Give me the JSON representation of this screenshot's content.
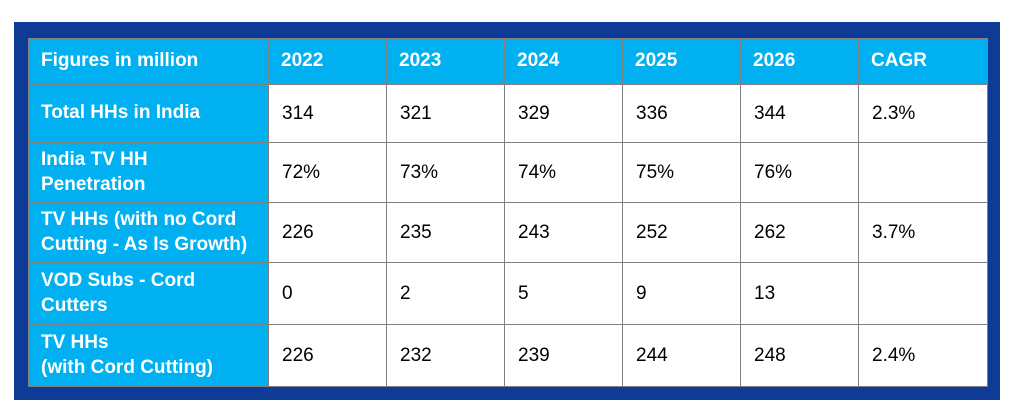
{
  "colors": {
    "frame_border": "#0d3b96",
    "header_fill": "#00b0f0",
    "cell_border": "#808080",
    "header_text": "#ffffff",
    "data_text": "#000000",
    "cell_background": "#ffffff"
  },
  "table": {
    "corner_label": "Figures in million",
    "columns": [
      "2022",
      "2023",
      "2024",
      "2025",
      "2026",
      "CAGR"
    ],
    "rows": [
      {
        "label": "Total HHs in India",
        "values": [
          "314",
          "321",
          "329",
          "336",
          "344",
          "2.3%"
        ]
      },
      {
        "label": "India TV HH\nPenetration",
        "values": [
          "72%",
          "73%",
          "74%",
          "75%",
          "76%",
          ""
        ]
      },
      {
        "label": "TV HHs (with no Cord\nCutting - As Is Growth)",
        "values": [
          "226",
          "235",
          "243",
          "252",
          "262",
          "3.7%"
        ]
      },
      {
        "label": "VOD Subs - Cord\nCutters",
        "values": [
          "0",
          "2",
          "5",
          "9",
          "13",
          ""
        ]
      },
      {
        "label": "TV HHs\n(with Cord Cutting)",
        "values": [
          "226",
          "232",
          "239",
          "244",
          "248",
          "2.4%"
        ]
      }
    ]
  },
  "chart_data": {
    "type": "table",
    "title": "Figures in million",
    "categories": [
      "2022",
      "2023",
      "2024",
      "2025",
      "2026"
    ],
    "series": [
      {
        "name": "Total HHs in India",
        "values": [
          314,
          321,
          329,
          336,
          344
        ],
        "cagr": "2.3%"
      },
      {
        "name": "India TV HH Penetration",
        "values": [
          "72%",
          "73%",
          "74%",
          "75%",
          "76%"
        ],
        "cagr": ""
      },
      {
        "name": "TV HHs (with no Cord Cutting - As Is Growth)",
        "values": [
          226,
          235,
          243,
          252,
          262
        ],
        "cagr": "3.7%"
      },
      {
        "name": "VOD Subs - Cord Cutters",
        "values": [
          0,
          2,
          5,
          9,
          13
        ],
        "cagr": ""
      },
      {
        "name": "TV HHs (with Cord Cutting)",
        "values": [
          226,
          232,
          239,
          244,
          248
        ],
        "cagr": "2.4%"
      }
    ]
  }
}
